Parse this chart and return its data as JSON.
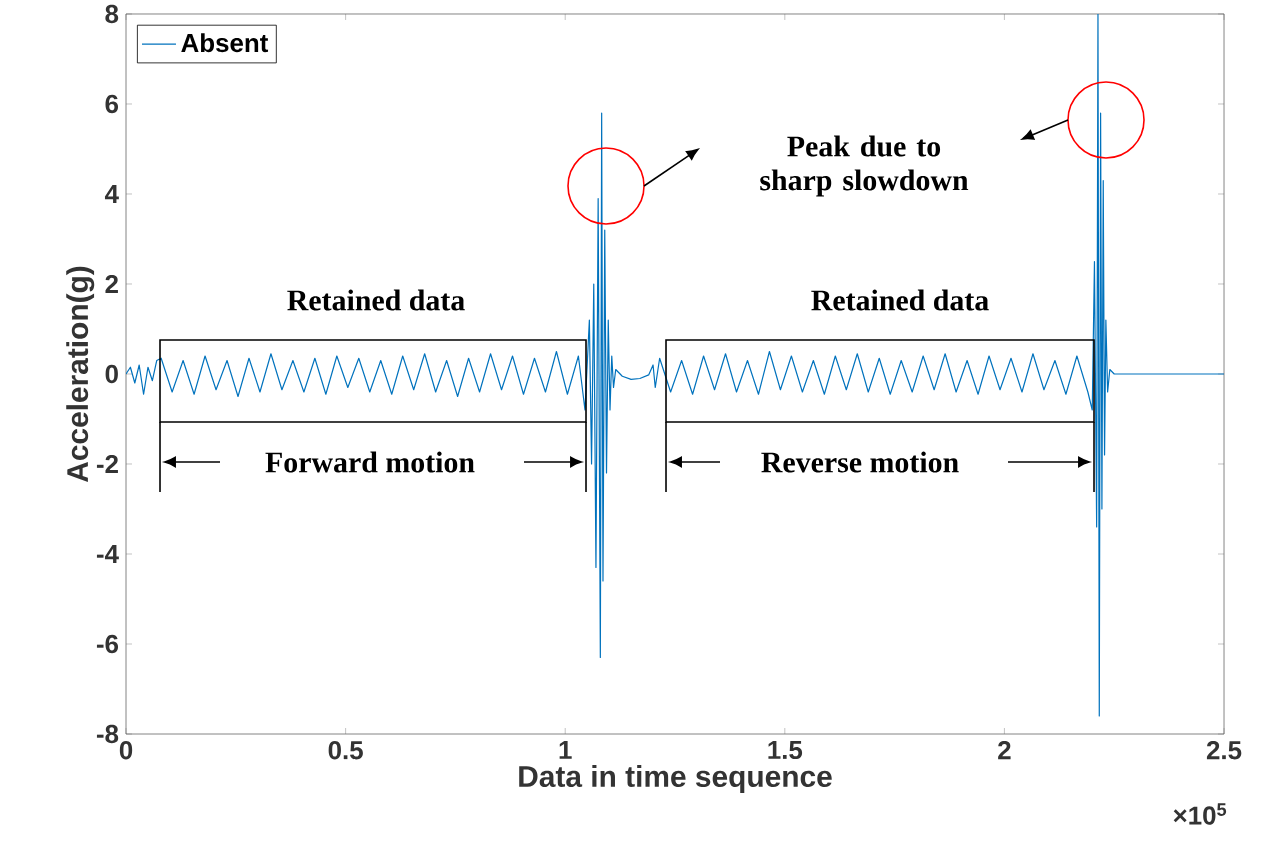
{
  "chart_data": {
    "type": "line",
    "xlabel": "Data in time sequence",
    "ylabel": "Acceleration(g)",
    "xlim": [
      0,
      2.5
    ],
    "ylim": [
      -8,
      8
    ],
    "xticks": [
      0,
      0.5,
      1,
      1.5,
      2,
      2.5
    ],
    "yticks": [
      -8,
      -6,
      -4,
      -2,
      0,
      2,
      4,
      6,
      8
    ],
    "legend": "top left",
    "grid": false,
    "marker": "none",
    "line_style": "solid",
    "annotations": [
      "Retained data",
      "Forward motion",
      "Retained data",
      "Reverse motion",
      "Peak due to sharp slowdown",
      "×10$^{5}$"
    ],
    "series": [
      {
        "name": "Absent",
        "color": "#0072bd",
        "x": [
          0,
          0.01,
          0.02,
          0.03,
          0.04,
          0.05,
          0.06,
          0.07,
          0.08,
          0.105,
          0.13,
          0.155,
          0.18,
          0.205,
          0.23,
          0.255,
          0.28,
          0.305,
          0.33,
          0.355,
          0.38,
          0.405,
          0.43,
          0.455,
          0.48,
          0.505,
          0.53,
          0.555,
          0.58,
          0.605,
          0.63,
          0.655,
          0.68,
          0.705,
          0.73,
          0.755,
          0.78,
          0.805,
          0.83,
          0.855,
          0.88,
          0.905,
          0.93,
          0.955,
          0.98,
          1.005,
          1.03,
          1.045,
          1.055,
          1.06,
          1.065,
          1.07,
          1.075,
          1.08,
          1.083,
          1.086,
          1.09,
          1.094,
          1.098,
          1.102,
          1.106,
          1.11,
          1.115,
          1.13,
          1.15,
          1.17,
          1.19,
          1.2,
          1.205,
          1.215,
          1.24,
          1.265,
          1.29,
          1.315,
          1.34,
          1.365,
          1.39,
          1.415,
          1.44,
          1.465,
          1.49,
          1.515,
          1.54,
          1.565,
          1.59,
          1.615,
          1.64,
          1.665,
          1.69,
          1.715,
          1.74,
          1.765,
          1.79,
          1.815,
          1.84,
          1.865,
          1.89,
          1.915,
          1.94,
          1.965,
          1.99,
          2.015,
          2.04,
          2.065,
          2.09,
          2.115,
          2.14,
          2.165,
          2.19,
          2.2,
          2.205,
          2.21,
          2.213,
          2.216,
          2.219,
          2.222,
          2.225,
          2.228,
          2.231,
          2.235,
          2.24,
          2.25,
          2.5
        ],
        "values": [
          0,
          0.15,
          -0.2,
          0.2,
          -0.45,
          0.15,
          -0.15,
          0.3,
          0.35,
          -0.4,
          0.3,
          -0.45,
          0.4,
          -0.35,
          0.3,
          -0.5,
          0.35,
          -0.4,
          0.45,
          -0.35,
          0.3,
          -0.4,
          0.35,
          -0.45,
          0.4,
          -0.3,
          0.35,
          -0.4,
          0.3,
          -0.45,
          0.4,
          -0.35,
          0.45,
          -0.4,
          0.3,
          -0.5,
          0.35,
          -0.4,
          0.45,
          -0.35,
          0.4,
          -0.45,
          0.35,
          -0.4,
          0.5,
          -0.45,
          0.4,
          -0.8,
          1.2,
          -2.0,
          2.0,
          -4.3,
          3.9,
          -6.3,
          5.8,
          -4.6,
          3.2,
          -2.2,
          1.2,
          -0.8,
          0.4,
          -0.3,
          0.1,
          -0.05,
          -0.12,
          -0.1,
          -0.02,
          0.2,
          -0.3,
          0.35,
          -0.4,
          0.3,
          -0.45,
          0.4,
          -0.35,
          0.45,
          -0.4,
          0.3,
          -0.45,
          0.5,
          -0.35,
          0.4,
          -0.4,
          0.3,
          -0.45,
          0.4,
          -0.35,
          0.45,
          -0.4,
          0.35,
          -0.45,
          0.3,
          -0.4,
          0.4,
          -0.35,
          0.45,
          -0.4,
          0.3,
          -0.45,
          0.4,
          -0.35,
          0.35,
          -0.4,
          0.45,
          -0.35,
          0.3,
          -0.45,
          0.4,
          -0.4,
          -0.8,
          2.5,
          -3.4,
          8,
          -7.6,
          5.8,
          -3.0,
          4.3,
          -1.8,
          1.2,
          -0.4,
          0.1,
          0,
          0
        ]
      }
    ]
  }
}
